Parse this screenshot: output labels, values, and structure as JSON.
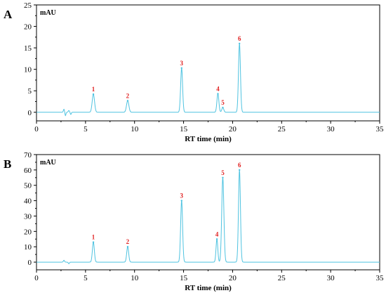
{
  "chart_data": [
    {
      "type": "line",
      "panel_label": "A",
      "unit_label": "mAU",
      "xlabel": "RT time (min)",
      "ylabel": "",
      "xlim": [
        0,
        35
      ],
      "ylim": [
        -2,
        25
      ],
      "x_ticks": [
        0,
        5,
        10,
        15,
        20,
        25,
        30,
        35
      ],
      "y_ticks": [
        0,
        5,
        10,
        15,
        20,
        25
      ],
      "color": "#4fc3e0",
      "peaks": [
        {
          "label": "1",
          "rt": 5.8,
          "height": 4.2,
          "width": 0.12
        },
        {
          "label": "2",
          "rt": 9.3,
          "height": 2.7,
          "width": 0.12
        },
        {
          "label": "3",
          "rt": 14.8,
          "height": 10.3,
          "width": 0.1
        },
        {
          "label": "4",
          "rt": 18.5,
          "height": 4.3,
          "width": 0.1
        },
        {
          "label": "5",
          "rt": 19.0,
          "height": 1.1,
          "width": 0.1
        },
        {
          "label": "6",
          "rt": 20.7,
          "height": 16.0,
          "width": 0.1
        }
      ],
      "baseline_noise": [
        {
          "rt": 2.8,
          "height": 0.7,
          "width": 0.06
        },
        {
          "rt": 2.95,
          "height": -0.8,
          "width": 0.05
        },
        {
          "rt": 3.3,
          "height": 0.4,
          "width": 0.06
        },
        {
          "rt": 3.5,
          "height": -0.5,
          "width": 0.05
        }
      ]
    },
    {
      "type": "line",
      "panel_label": "B",
      "unit_label": "mAU",
      "xlabel": "RT time (min)",
      "ylabel": "",
      "xlim": [
        0,
        35
      ],
      "ylim": [
        -5,
        70
      ],
      "x_ticks": [
        0,
        5,
        10,
        15,
        20,
        25,
        30,
        35
      ],
      "y_ticks": [
        0,
        10,
        20,
        30,
        40,
        50,
        60,
        70
      ],
      "color": "#4fc3e0",
      "peaks": [
        {
          "label": "1",
          "rt": 5.8,
          "height": 13.0,
          "width": 0.1
        },
        {
          "label": "2",
          "rt": 9.3,
          "height": 10.0,
          "width": 0.1
        },
        {
          "label": "3",
          "rt": 14.8,
          "height": 40.0,
          "width": 0.1
        },
        {
          "label": "4",
          "rt": 18.4,
          "height": 15.0,
          "width": 0.09
        },
        {
          "label": "5",
          "rt": 19.0,
          "height": 55.0,
          "width": 0.11
        },
        {
          "label": "6",
          "rt": 20.7,
          "height": 60.0,
          "width": 0.1
        }
      ],
      "baseline_noise": [
        {
          "rt": 2.8,
          "height": 1.2,
          "width": 0.06
        },
        {
          "rt": 3.3,
          "height": -1.0,
          "width": 0.06
        }
      ]
    }
  ]
}
